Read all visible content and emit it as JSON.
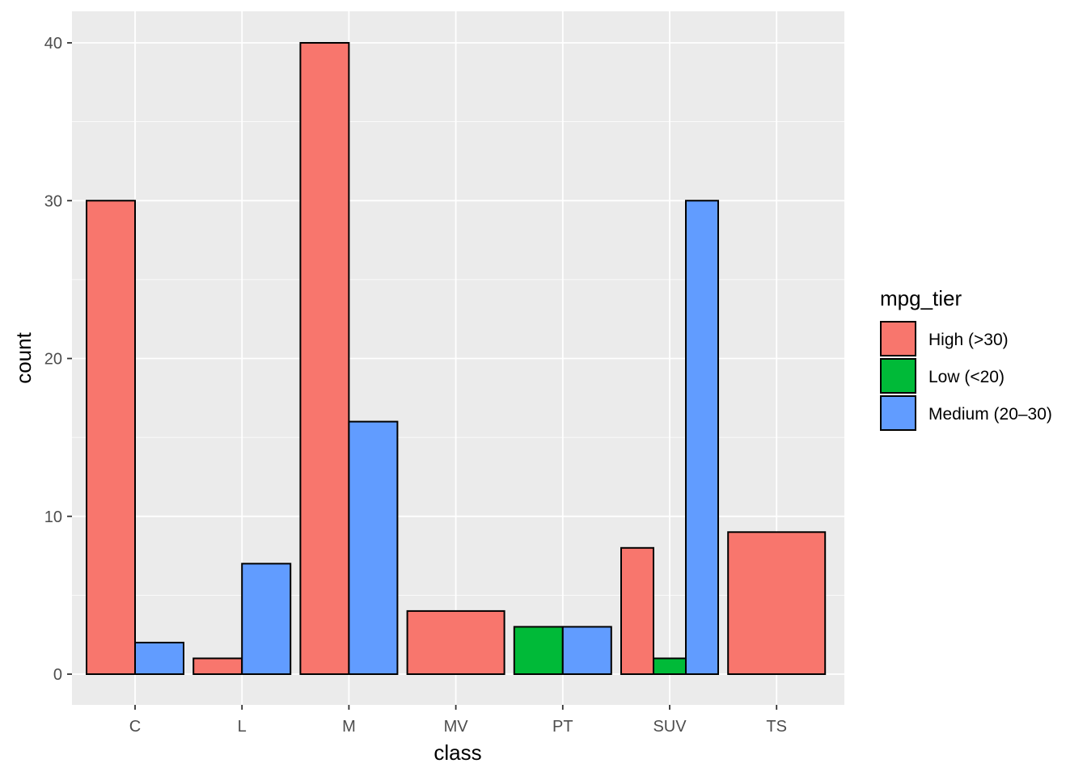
{
  "chart_data": {
    "type": "bar",
    "position": "dodge",
    "title": "",
    "xlabel": "class",
    "ylabel": "count",
    "categories": [
      "C",
      "L",
      "M",
      "MV",
      "PT",
      "SUV",
      "TS"
    ],
    "ylim": [
      0,
      43
    ],
    "y_ticks": [
      "0",
      "10",
      "20",
      "30",
      "40"
    ],
    "grid": true,
    "legend_position": "right",
    "legend_title": "mpg_tier",
    "series": [
      {
        "name": "High (>30)",
        "color": "#F8766D",
        "values": [
          30,
          1,
          40,
          4,
          null,
          8,
          9
        ]
      },
      {
        "name": "Low (<20)",
        "color": "#00BA38",
        "values": [
          null,
          null,
          null,
          null,
          3,
          1,
          null
        ]
      },
      {
        "name": "Medium (20–30)",
        "color": "#619CFF",
        "values": [
          2,
          7,
          16,
          null,
          3,
          30,
          null
        ]
      }
    ]
  },
  "colors": {
    "panel_background": "#EBEBEB",
    "grid_line": "#FFFFFF",
    "bar_outline": "#000000"
  }
}
